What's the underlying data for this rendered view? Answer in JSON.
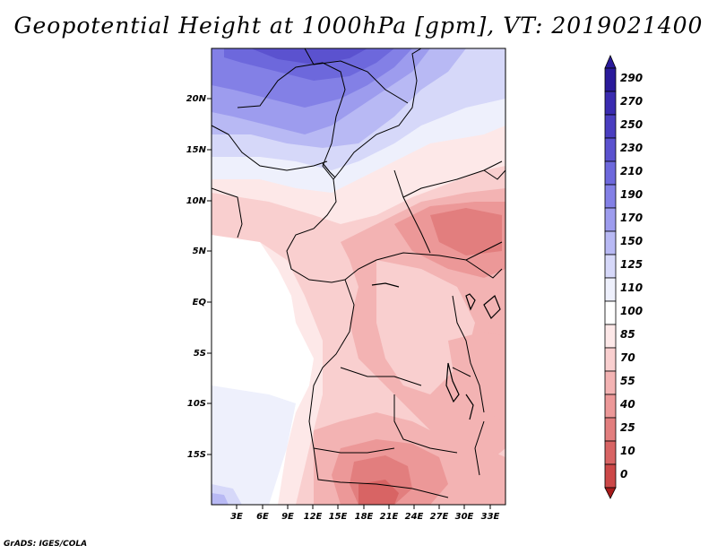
{
  "title": "Geopotential Height at 1000hPa [gpm], VT: 2019021400",
  "credit": "GrADS: IGES/COLA",
  "map": {
    "lat_labels": [
      "20N",
      "15N",
      "10N",
      "5N",
      "EQ",
      "5S",
      "10S",
      "15S"
    ],
    "lon_labels": [
      "3E",
      "6E",
      "9E",
      "12E",
      "15E",
      "18E",
      "21E",
      "24E",
      "27E",
      "30E",
      "33E"
    ]
  },
  "colorbar": {
    "levels": [
      "290",
      "270",
      "250",
      "230",
      "210",
      "190",
      "170",
      "150",
      "125",
      "110",
      "100",
      "85",
      "70",
      "55",
      "40",
      "25",
      "10",
      "0"
    ],
    "colors": {
      "b9": "#2a1a9a",
      "b8": "#3a2bb0",
      "b7": "#4a3ec0",
      "b6": "#5b52cf",
      "b5": "#6d68dc",
      "b4": "#8380e6",
      "b3": "#9d9cee",
      "b2": "#b8b9f4",
      "b1": "#d6d8f9",
      "b0": "#eef0fc",
      "w": "#ffffff",
      "r0": "#fde8e8",
      "r1": "#f9cfcf",
      "r2": "#f3b3b3",
      "r3": "#ec9898",
      "r4": "#e27e7e",
      "r5": "#d86464",
      "r6": "#cc4848",
      "r7": "#bd2e2e",
      "r8": "#a61a1a"
    }
  }
}
